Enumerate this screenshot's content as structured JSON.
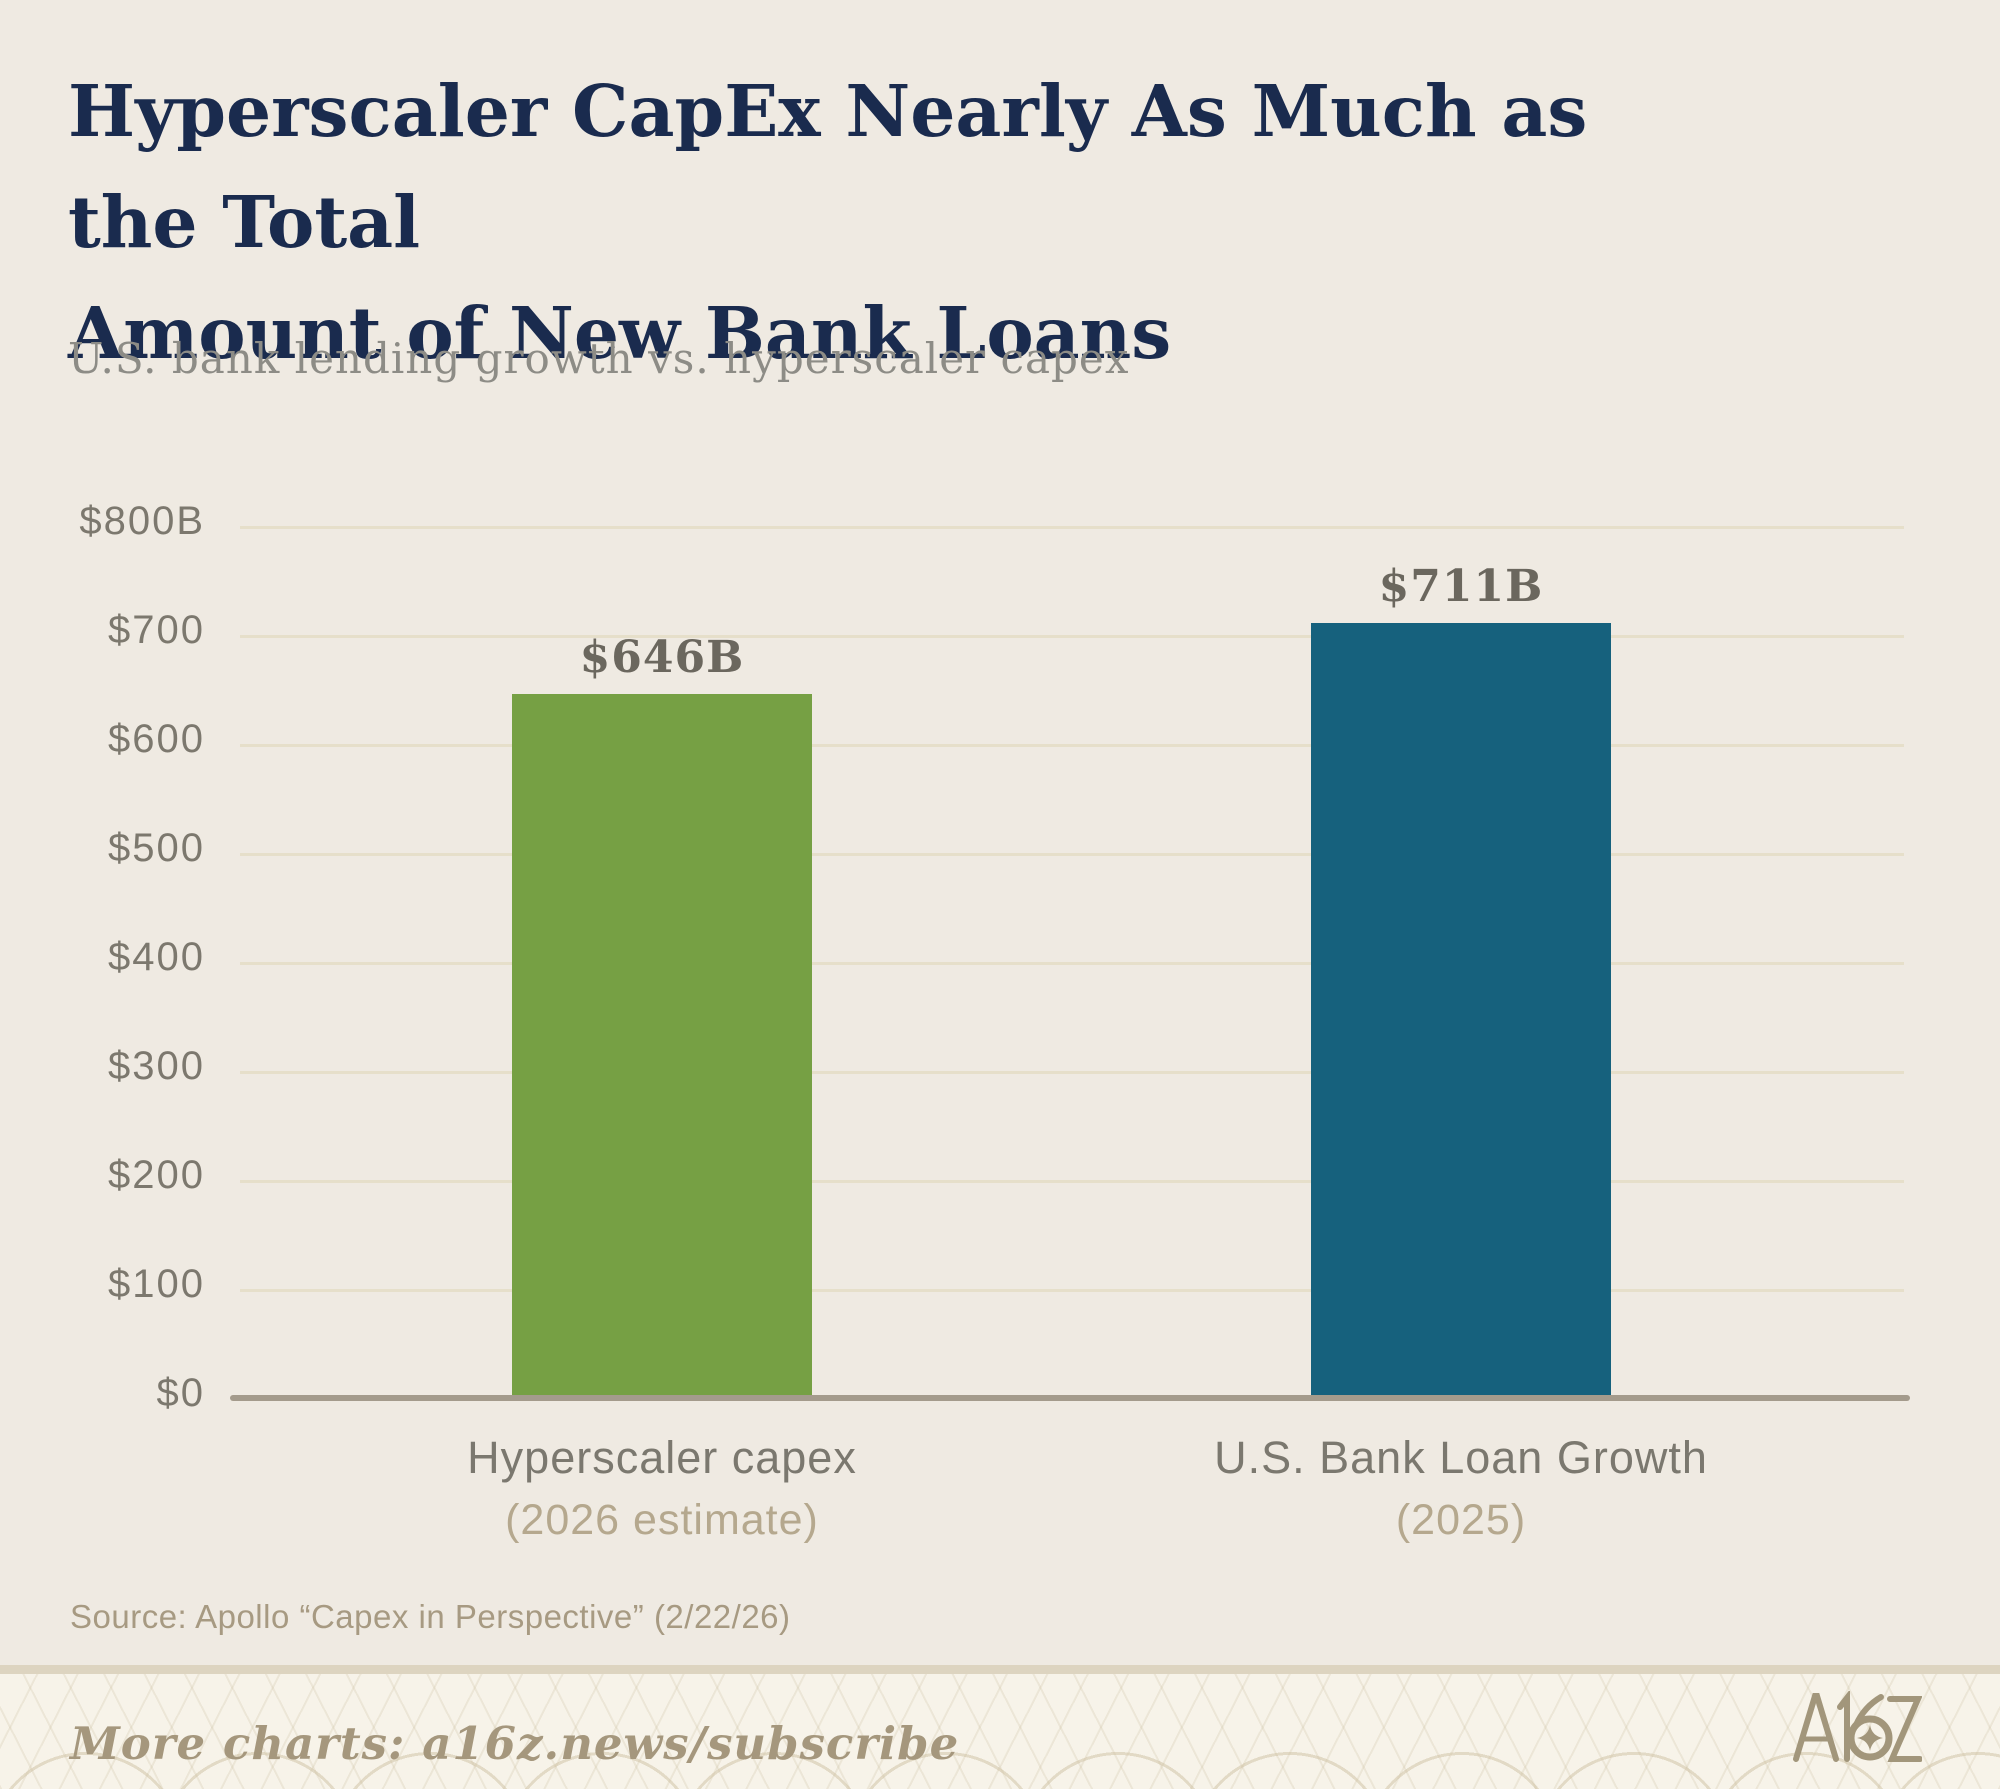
{
  "title": {
    "lines": [
      "Hyperscaler CapEx Nearly As Much as the Total",
      "Amount of New Bank Loans"
    ]
  },
  "subtitle": "U.S. bank lending growth vs. hyperscaler capex",
  "source": "Source: Apollo “Capex in Perspective” (2/22/26)",
  "footer": {
    "more_charts": "More charts: a16z.news/subscribe",
    "logo_text": "A16Z"
  },
  "colors": {
    "background": "#efeae2",
    "title": "#1a2b4e",
    "subtitle": "#8d8c86",
    "gridline": "#e6dfca",
    "axis_line": "#a49b8c",
    "tick_label": "#7c786e",
    "value_label": "#6b675e",
    "category_label": "#7b786f",
    "category_sublabel": "#b5a88e",
    "bar_green": "#76a044",
    "bar_teal": "#16617d",
    "footer_background": "#f7f3e9",
    "footer_text": "#a5977d"
  },
  "chart_data": {
    "type": "bar",
    "title": "Hyperscaler CapEx Nearly As Much as the Total Amount of New Bank Loans",
    "subtitle": "U.S. bank lending growth vs. hyperscaler capex",
    "categories": [
      "Hyperscaler capex (2026 estimate)",
      "U.S. Bank Loan Growth (2025)"
    ],
    "series": [
      {
        "name": "Hyperscaler capex",
        "sublabel": "(2026 estimate)",
        "value": 646,
        "value_label": "$646B",
        "color": "#76a044"
      },
      {
        "name": "U.S. Bank Loan Growth",
        "sublabel": "(2025)",
        "value": 711,
        "value_label": "$711B",
        "color": "#16617d"
      }
    ],
    "xlabel": "",
    "ylabel": "",
    "ylim": [
      0,
      800
    ],
    "ytick_interval": 100,
    "yticks": [
      "$800B",
      "$700",
      "$600",
      "$500",
      "$400",
      "$300",
      "$200",
      "$100",
      "$0"
    ],
    "grid": true,
    "legend": false
  }
}
